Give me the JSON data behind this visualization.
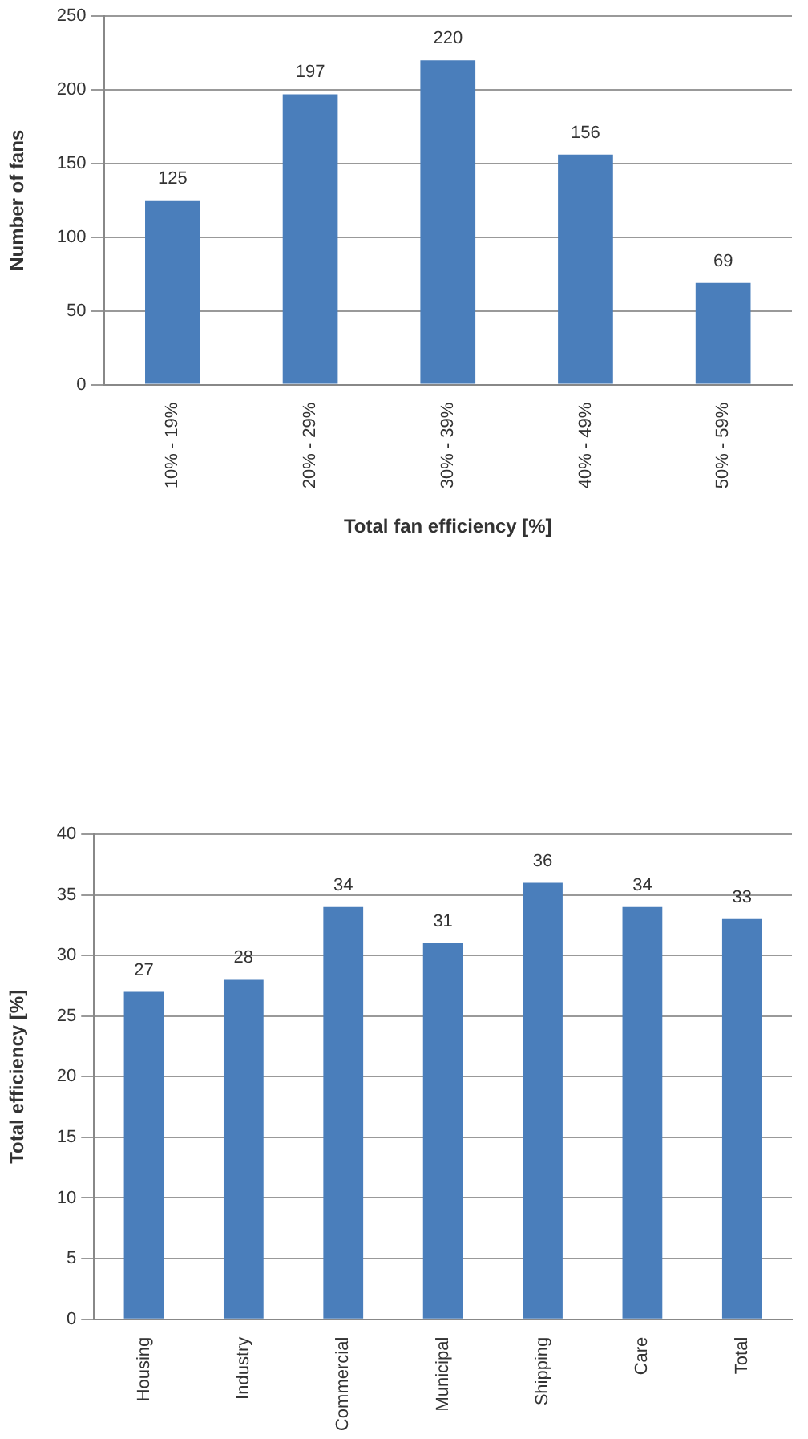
{
  "chart_data": [
    {
      "type": "bar",
      "xlabel": "Total fan efficiency [%]",
      "ylabel": "Number of fans",
      "categories": [
        "10% - 19%",
        "20% - 29%",
        "30% - 39%",
        "40% - 49%",
        "50% - 59%"
      ],
      "values": [
        125,
        197,
        220,
        156,
        69
      ],
      "color": "#4a7ebb",
      "ylim": [
        0,
        250
      ],
      "yticks": [
        0,
        50,
        100,
        150,
        200,
        250
      ],
      "grid": "y",
      "data_labels": true
    },
    {
      "type": "bar",
      "ylabel": "Total efficiency [%]",
      "categories": [
        "Housing",
        "Industry",
        "Commercial",
        "Municipal",
        "Shipping",
        "Care",
        "Total"
      ],
      "values": [
        27,
        28,
        34,
        31,
        36,
        34,
        33
      ],
      "color": "#4a7ebb",
      "ylim": [
        0,
        40
      ],
      "yticks": [
        0,
        5,
        10,
        15,
        20,
        25,
        30,
        35,
        40
      ],
      "grid": "y",
      "data_labels": true
    }
  ]
}
